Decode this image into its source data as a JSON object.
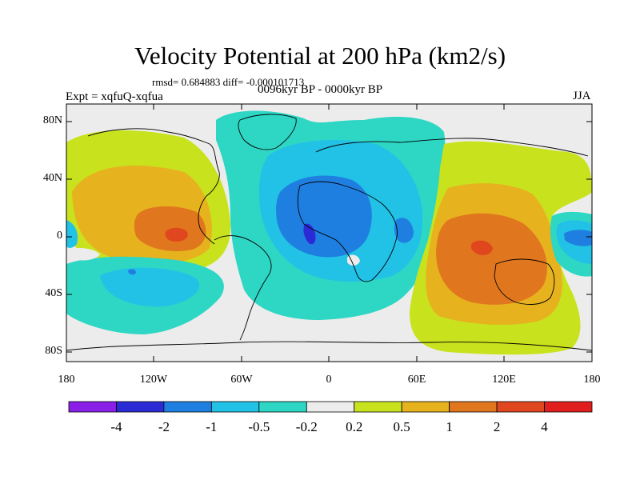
{
  "title": "Velocity Potential at 200 hPa (km2/s)",
  "stats": "rmsd= 0.684883 diff= -0.000101713",
  "experiment": "Expt = xqfuQ-xqfua",
  "period": "0096kyr BP - 0000kyr BP",
  "season": "JJA",
  "axes": {
    "y_labels": [
      "80N",
      "40N",
      "0",
      "40S",
      "80S"
    ],
    "x_labels": [
      "180",
      "120W",
      "60W",
      "0",
      "60E",
      "120E",
      "180"
    ]
  },
  "colorbar": {
    "labels": [
      "-4",
      "-2",
      "-1",
      "-0.5",
      "-0.2",
      "0.2",
      "0.5",
      "1",
      "2",
      "4"
    ],
    "colors": [
      "#8a1fe8",
      "#2b2bd6",
      "#1f7fe0",
      "#22c1e6",
      "#2ed6c4",
      "#ececec",
      "#c9e21e",
      "#e6b21e",
      "#e0761e",
      "#e0471e",
      "#e11e1e"
    ]
  },
  "palette": {
    "neutral": "#ececec",
    "cyan": "#2ed6c4",
    "sky": "#22c1e6",
    "blue": "#1f7fe0",
    "darkblue": "#2b2bd6",
    "lime": "#c9e21e",
    "yellow": "#e6b21e",
    "orange": "#e0761e",
    "red": "#e0471e"
  }
}
